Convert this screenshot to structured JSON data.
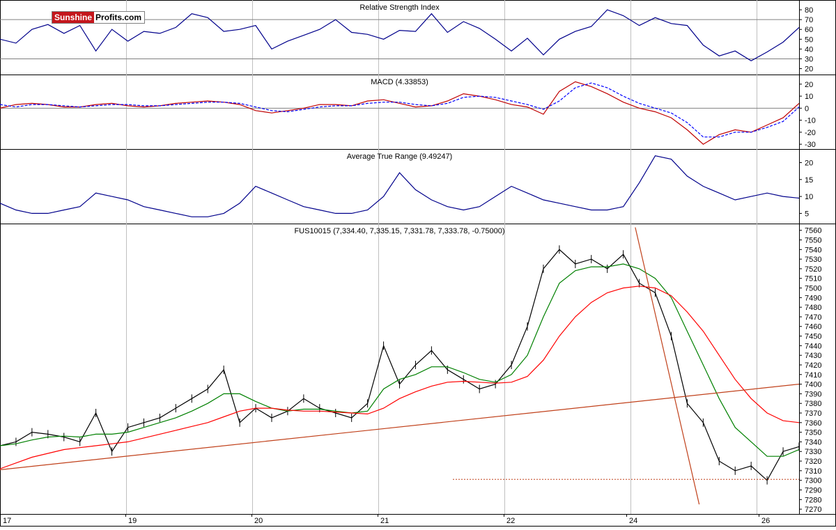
{
  "logo": {
    "part_a": "Sunshine",
    "part_b": "Profits.com"
  },
  "colors": {
    "rsi": "#00008b",
    "macd": "#c00000",
    "signal": "#0000ff",
    "atr": "#00008b",
    "price": "#000000",
    "ma_fast": "#008000",
    "ma_slow": "#ff0000",
    "trend": "#c0401a",
    "grid": "#c0c0c0",
    "ref": "#808080"
  },
  "x_axis": {
    "ticks": [
      "17",
      "19",
      "20",
      "21",
      "22",
      "24",
      "26"
    ]
  },
  "chart_data": [
    {
      "type": "line",
      "title": "Relative Strength Index",
      "ylim": [
        14,
        90
      ],
      "y_ticks": [
        20,
        30,
        40,
        50,
        60,
        70,
        80
      ],
      "reference_lines": [
        30,
        70
      ],
      "series": [
        {
          "x": [
            0,
            2,
            4,
            6,
            8,
            10,
            12,
            14,
            16,
            18,
            20,
            22,
            24,
            26,
            28,
            30,
            32,
            34,
            36,
            38,
            40,
            42,
            44,
            46,
            48,
            50,
            52,
            54,
            56,
            58,
            60,
            62,
            64,
            66,
            68,
            70,
            72,
            74,
            76,
            78,
            80,
            82,
            84,
            86,
            88,
            90,
            92,
            94,
            96,
            98,
            100
          ],
          "values": [
            50,
            46,
            60,
            65,
            56,
            64,
            38,
            60,
            48,
            58,
            56,
            62,
            76,
            72,
            58,
            60,
            64,
            40,
            48,
            54,
            60,
            70,
            57,
            55,
            50,
            59,
            58,
            76,
            57,
            68,
            61,
            50,
            38,
            51,
            34,
            50,
            58,
            63,
            80,
            74,
            64,
            72,
            66,
            64,
            44,
            33,
            38,
            28,
            37,
            47,
            62
          ]
        }
      ]
    },
    {
      "type": "line",
      "title": "MACD (4.33853)",
      "ylim": [
        -34,
        28
      ],
      "y_ticks": [
        -30,
        -20,
        -10,
        0,
        10,
        20
      ],
      "reference_lines": [
        0
      ],
      "series": [
        {
          "x": [
            0,
            2,
            4,
            6,
            8,
            10,
            12,
            14,
            16,
            18,
            20,
            22,
            24,
            26,
            28,
            30,
            32,
            34,
            36,
            38,
            40,
            42,
            44,
            46,
            48,
            50,
            52,
            54,
            56,
            58,
            60,
            62,
            64,
            66,
            68,
            70,
            72,
            74,
            76,
            78,
            80,
            82,
            84,
            86,
            88,
            90,
            92,
            94,
            96,
            98,
            100
          ],
          "values": [
            0,
            3,
            4,
            3,
            1,
            1,
            3,
            4,
            2,
            1,
            2,
            4,
            5,
            6,
            5,
            3,
            -2,
            -4,
            -2,
            0,
            3,
            3,
            2,
            6,
            7,
            4,
            1,
            2,
            6,
            12,
            10,
            7,
            3,
            1,
            -5,
            14,
            22,
            18,
            12,
            5,
            0,
            -3,
            -8,
            -18,
            -30,
            -22,
            -18,
            -20,
            -14,
            -8,
            4
          ]
        },
        {
          "x": [
            0,
            2,
            4,
            6,
            8,
            10,
            12,
            14,
            16,
            18,
            20,
            22,
            24,
            26,
            28,
            30,
            32,
            34,
            36,
            38,
            40,
            42,
            44,
            46,
            48,
            50,
            52,
            54,
            56,
            58,
            60,
            62,
            64,
            66,
            68,
            70,
            72,
            74,
            76,
            78,
            80,
            82,
            84,
            86,
            88,
            90,
            92,
            94,
            96,
            98,
            100
          ],
          "values": [
            3,
            1,
            3,
            3,
            2,
            1,
            2,
            3,
            3,
            2,
            2,
            3,
            4,
            5,
            5,
            4,
            1,
            -2,
            -3,
            -1,
            1,
            2,
            2,
            4,
            5,
            5,
            3,
            2,
            4,
            9,
            10,
            9,
            6,
            3,
            -1,
            6,
            17,
            21,
            17,
            10,
            4,
            0,
            -4,
            -12,
            -24,
            -24,
            -20,
            -20,
            -16,
            -11,
            1
          ]
        }
      ]
    },
    {
      "type": "line",
      "title": "Average True Range (9.49247)",
      "ylim": [
        2,
        24
      ],
      "y_ticks": [
        5,
        10,
        15,
        20
      ],
      "series": [
        {
          "x": [
            0,
            2,
            4,
            6,
            8,
            10,
            12,
            14,
            16,
            18,
            20,
            22,
            24,
            26,
            28,
            30,
            32,
            34,
            36,
            38,
            40,
            42,
            44,
            46,
            48,
            50,
            52,
            54,
            56,
            58,
            60,
            62,
            64,
            66,
            68,
            70,
            72,
            74,
            76,
            78,
            80,
            82,
            84,
            86,
            88,
            90,
            92,
            94,
            96,
            98,
            100
          ],
          "values": [
            8,
            6,
            5,
            5,
            6,
            7,
            11,
            10,
            9,
            7,
            6,
            5,
            4,
            4,
            5,
            8,
            13,
            11,
            9,
            7,
            6,
            5,
            5,
            6,
            10,
            17,
            12,
            9,
            7,
            6,
            7,
            10,
            13,
            11,
            9,
            8,
            7,
            6,
            6,
            7,
            14,
            22,
            21,
            16,
            13,
            11,
            9,
            10,
            11,
            10,
            9.5
          ]
        }
      ]
    },
    {
      "type": "line",
      "title": "FUS10015 (7,334.40, 7,335.15, 7,331.78, 7,333.78, -0.75000)",
      "ylim": [
        7265,
        7567
      ],
      "y_ticks": [
        7270,
        7280,
        7290,
        7300,
        7310,
        7320,
        7330,
        7340,
        7350,
        7360,
        7370,
        7380,
        7390,
        7400,
        7410,
        7420,
        7430,
        7440,
        7450,
        7460,
        7470,
        7480,
        7490,
        7500,
        7510,
        7520,
        7530,
        7540,
        7550,
        7560
      ],
      "series": [
        {
          "x": [
            0,
            2,
            4,
            6,
            8,
            10,
            12,
            14,
            16,
            18,
            20,
            22,
            24,
            26,
            28,
            30,
            32,
            34,
            36,
            38,
            40,
            42,
            44,
            46,
            48,
            50,
            52,
            54,
            56,
            58,
            60,
            62,
            64,
            66,
            68,
            70,
            72,
            74,
            76,
            78,
            80,
            82,
            84,
            86,
            88,
            90,
            92,
            94,
            96,
            98,
            100
          ],
          "values": [
            7336,
            7340,
            7350,
            7348,
            7345,
            7340,
            7370,
            7330,
            7355,
            7360,
            7365,
            7375,
            7385,
            7395,
            7415,
            7360,
            7375,
            7365,
            7372,
            7385,
            7375,
            7370,
            7365,
            7380,
            7440,
            7400,
            7420,
            7435,
            7415,
            7405,
            7395,
            7400,
            7420,
            7460,
            7520,
            7540,
            7525,
            7530,
            7520,
            7535,
            7505,
            7495,
            7450,
            7380,
            7360,
            7320,
            7310,
            7315,
            7300,
            7330,
            7335
          ]
        },
        {
          "x": [
            0,
            2,
            4,
            6,
            8,
            10,
            12,
            14,
            16,
            18,
            20,
            22,
            24,
            26,
            28,
            30,
            32,
            34,
            36,
            38,
            40,
            42,
            44,
            46,
            48,
            50,
            52,
            54,
            56,
            58,
            60,
            62,
            64,
            66,
            68,
            70,
            72,
            74,
            76,
            78,
            80,
            82,
            84,
            86,
            88,
            90,
            92,
            94,
            96,
            98,
            100
          ],
          "values": [
            7336,
            7338,
            7342,
            7345,
            7346,
            7345,
            7348,
            7348,
            7350,
            7355,
            7360,
            7365,
            7372,
            7380,
            7390,
            7390,
            7382,
            7375,
            7372,
            7374,
            7374,
            7372,
            7370,
            7372,
            7395,
            7405,
            7410,
            7418,
            7418,
            7412,
            7405,
            7402,
            7410,
            7430,
            7470,
            7505,
            7518,
            7522,
            7522,
            7525,
            7520,
            7510,
            7490,
            7455,
            7420,
            7385,
            7355,
            7340,
            7325,
            7325,
            7332
          ]
        },
        {
          "x": [
            0,
            2,
            4,
            6,
            8,
            10,
            12,
            14,
            16,
            18,
            20,
            22,
            24,
            26,
            28,
            30,
            32,
            34,
            36,
            38,
            40,
            42,
            44,
            46,
            48,
            50,
            52,
            54,
            56,
            58,
            60,
            62,
            64,
            66,
            68,
            70,
            72,
            74,
            76,
            78,
            80,
            82,
            84,
            86,
            88,
            90,
            92,
            94,
            96,
            98,
            100
          ],
          "values": [
            7312,
            7318,
            7324,
            7328,
            7332,
            7334,
            7336,
            7338,
            7340,
            7344,
            7348,
            7352,
            7356,
            7360,
            7366,
            7372,
            7375,
            7375,
            7373,
            7372,
            7372,
            7371,
            7370,
            7369,
            7375,
            7385,
            7392,
            7398,
            7402,
            7403,
            7402,
            7401,
            7402,
            7408,
            7425,
            7450,
            7470,
            7485,
            7495,
            7500,
            7502,
            7500,
            7492,
            7475,
            7455,
            7430,
            7405,
            7385,
            7370,
            7362,
            7360
          ]
        }
      ],
      "trendlines": [
        [
          0,
          7311,
          100,
          7400
        ],
        [
          79.5,
          7563,
          87.5,
          7275
        ]
      ],
      "support_level": 7301
    }
  ]
}
